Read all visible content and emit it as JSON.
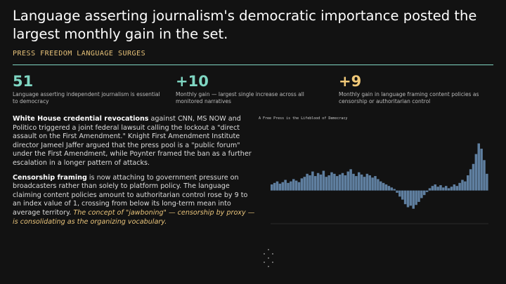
{
  "header": {
    "title": "Language asserting journalism's democratic importance posted the largest monthly gain in the set.",
    "kicker": "PRESS FREEDOM LANGUAGE SURGES"
  },
  "stats": [
    {
      "value": "51",
      "label": "Language asserting independent journalism is essential to democracy"
    },
    {
      "value": "+10",
      "label": "Monthly gain — largest single increase across all monitored narratives"
    },
    {
      "value": "+9",
      "label": "Monthly gain in language framing content policies as censorship or authoritarian control"
    }
  ],
  "body": [
    {
      "lead": "White House credential revocations",
      "text": " against CNN, MS NOW and Politico triggered a joint federal lawsuit calling the lockout a \"direct assault on the First Amendment.\" Knight First Amendment Institute director Jameel Jaffer argued that the press pool is a \"public forum\" under the First Amendment, while Poynter framed the ban as a further escalation in a longer pattern of attacks."
    },
    {
      "lead": "Censorship framing",
      "text": " is now attaching to government pressure on broadcasters rather than solely to platform policy. The language claiming content policies amount to authoritarian control rose by 9 to an index value of 1, crossing from below its long-term mean into average territory. ",
      "emphasis": "The concept of \"jawboning\" — censorship by proxy — is consolidating as the organizing vocabulary."
    }
  ],
  "chart_data": {
    "type": "bar",
    "title": "A Free Press is the Lifeblood of Democracy",
    "color": "#5f7fa0",
    "values": [
      8,
      10,
      12,
      9,
      11,
      14,
      10,
      12,
      15,
      13,
      11,
      16,
      18,
      22,
      20,
      25,
      19,
      23,
      21,
      26,
      18,
      20,
      24,
      22,
      19,
      21,
      23,
      20,
      25,
      28,
      22,
      19,
      24,
      21,
      18,
      22,
      20,
      17,
      19,
      15,
      12,
      10,
      8,
      6,
      4,
      2,
      -3,
      -8,
      -12,
      -18,
      -22,
      -20,
      -24,
      -19,
      -15,
      -10,
      -6,
      -2,
      3,
      6,
      8,
      5,
      7,
      4,
      6,
      3,
      5,
      8,
      6,
      10,
      14,
      12,
      20,
      28,
      35,
      48,
      62,
      55,
      40,
      22
    ],
    "ylim": [
      -40,
      80
    ]
  }
}
